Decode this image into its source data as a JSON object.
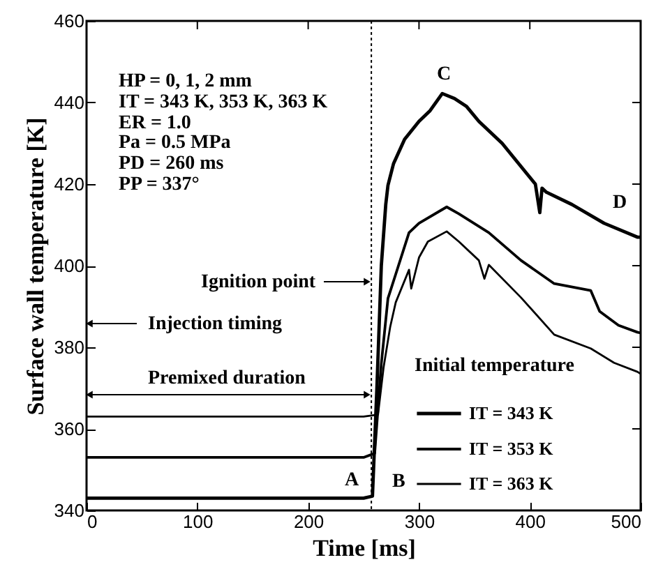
{
  "chart_data": {
    "type": "line",
    "xlabel": "Time [ms]",
    "ylabel": "Surface wall temperature [K]",
    "legend_title": "Initial temperature",
    "legend": "bottom right",
    "marker": "none",
    "line_style": "solid",
    "xlim": [
      0,
      500
    ],
    "xticks": [
      0,
      100,
      200,
      300,
      400,
      500
    ],
    "ylim": [
      340,
      460
    ],
    "yticks": [
      340,
      360,
      380,
      400,
      420,
      440,
      460
    ],
    "series": [
      {
        "name": "IT = 343 K",
        "color": "#000000",
        "x": [
          0,
          50,
          100,
          150,
          200,
          250,
          258,
          262,
          266,
          270,
          272,
          277,
          287,
          300,
          310,
          321,
          332,
          343,
          354,
          375,
          396,
          405,
          409,
          411,
          415,
          438,
          467,
          497,
          500
        ],
        "values": [
          343,
          343,
          343,
          343,
          343,
          343,
          343.5,
          370,
          400,
          415,
          419.7,
          425,
          431,
          435.4,
          438,
          442.2,
          441,
          439,
          435.4,
          430,
          423,
          420,
          413,
          419,
          418,
          415,
          410.4,
          407,
          407
        ]
      },
      {
        "name": "IT = 353 K",
        "color": "#000000",
        "x": [
          0,
          50,
          100,
          150,
          200,
          250,
          260,
          266,
          272,
          279,
          291,
          300,
          325,
          336,
          363,
          392,
          422,
          455,
          463,
          480,
          497,
          500
        ],
        "values": [
          353,
          353,
          353,
          353,
          353,
          353,
          354,
          376,
          392,
          397.9,
          408.1,
          410.4,
          414.4,
          412.7,
          408.1,
          401.3,
          395.6,
          393.9,
          388.8,
          385.4,
          383.7,
          383.5
        ]
      },
      {
        "name": "IT = 363 K",
        "color": "#000000",
        "x": [
          0,
          50,
          100,
          150,
          200,
          250,
          263,
          268,
          274,
          279,
          291,
          293,
          300,
          308,
          325,
          336,
          354,
          359,
          363,
          392,
          422,
          455,
          476,
          497,
          500
        ],
        "values": [
          363,
          363,
          363,
          363,
          363,
          363,
          363.5,
          375,
          385,
          391,
          399,
          394.4,
          402,
          405.9,
          408.4,
          405.9,
          401.3,
          396.8,
          400.2,
          392.2,
          383.1,
          379.7,
          376.2,
          374,
          373.5
        ]
      }
    ],
    "ref_lines": [
      {
        "axis": "x",
        "value": 257,
        "line_style": "dotted",
        "color": "#000000"
      }
    ],
    "annotations": [
      "HP = 0, 1, 2 mm",
      "IT = 343 K, 353 K, 363 K",
      "ER = 1.0",
      "Pa = 0.5 MPa",
      "PD = 260 ms",
      "PP = 337°",
      "Ignition point",
      "Injection timing",
      "Premixed duration",
      "A",
      "B",
      "C",
      "D"
    ]
  }
}
